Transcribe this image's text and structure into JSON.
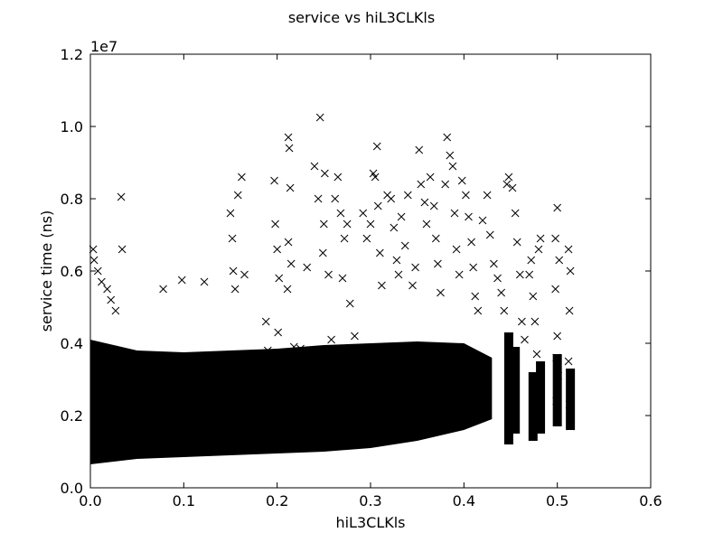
{
  "chart_data": {
    "type": "scatter",
    "title": "service vs hiL3CLKls",
    "xlabel": "hiL3CLKls",
    "ylabel": "service time (ns)",
    "y_scale_label": "1e7",
    "y_scale_factor": 10000000,
    "xlim": [
      0.0,
      0.6
    ],
    "ylim": [
      0.0,
      12000000
    ],
    "x_ticks": [
      0.0,
      0.1,
      0.2,
      0.3,
      0.4,
      0.5,
      0.6
    ],
    "x_tick_labels": [
      "0.0",
      "0.1",
      "0.2",
      "0.3",
      "0.4",
      "0.5",
      "0.6"
    ],
    "y_ticks": [
      0,
      2000000,
      4000000,
      6000000,
      8000000,
      10000000,
      12000000
    ],
    "y_tick_labels": [
      "0.0",
      "0.2",
      "0.4",
      "0.6",
      "0.8",
      "1.0",
      "1.2"
    ],
    "grid": false,
    "marker": "x",
    "marker_color": "#000000",
    "series": [
      {
        "points": [
          [
            0.003,
            6600000.0
          ],
          [
            0.004,
            6300000.0
          ],
          [
            0.008,
            6000000.0
          ],
          [
            0.012,
            5700000.0
          ],
          [
            0.018,
            5500000.0
          ],
          [
            0.022,
            5200000.0
          ],
          [
            0.027,
            4900000.0
          ],
          [
            0.033,
            8050000.0
          ],
          [
            0.034,
            6600000.0
          ],
          [
            0.078,
            5500000.0
          ],
          [
            0.098,
            5750000.0
          ],
          [
            0.122,
            5700000.0
          ],
          [
            0.15,
            7600000.0
          ],
          [
            0.152,
            6900000.0
          ],
          [
            0.153,
            6000000.0
          ],
          [
            0.155,
            5500000.0
          ],
          [
            0.162,
            8600000.0
          ],
          [
            0.158,
            8100000.0
          ],
          [
            0.165,
            5900000.0
          ],
          [
            0.188,
            4600000.0
          ],
          [
            0.19,
            3800000.0
          ],
          [
            0.197,
            8500000.0
          ],
          [
            0.2,
            6600000.0
          ],
          [
            0.198,
            7300000.0
          ],
          [
            0.202,
            5800000.0
          ],
          [
            0.201,
            4300000.0
          ],
          [
            0.212,
            9700000.0
          ],
          [
            0.213,
            9400000.0
          ],
          [
            0.214,
            8300000.0
          ],
          [
            0.212,
            6800000.0
          ],
          [
            0.215,
            6200000.0
          ],
          [
            0.211,
            5500000.0
          ],
          [
            0.218,
            3900000.0
          ],
          [
            0.225,
            3850000.0
          ],
          [
            0.232,
            6100000.0
          ],
          [
            0.24,
            8900000.0
          ],
          [
            0.244,
            8000000.0
          ],
          [
            0.246,
            10250000.0
          ],
          [
            0.251,
            8700000.0
          ],
          [
            0.25,
            7300000.0
          ],
          [
            0.249,
            6500000.0
          ],
          [
            0.255,
            5900000.0
          ],
          [
            0.258,
            4100000.0
          ],
          [
            0.262,
            8000000.0
          ],
          [
            0.265,
            8600000.0
          ],
          [
            0.268,
            7600000.0
          ],
          [
            0.272,
            6900000.0
          ],
          [
            0.275,
            7300000.0
          ],
          [
            0.27,
            5800000.0
          ],
          [
            0.278,
            5100000.0
          ],
          [
            0.283,
            4200000.0
          ],
          [
            0.292,
            7600000.0
          ],
          [
            0.296,
            6900000.0
          ],
          [
            0.3,
            7300000.0
          ],
          [
            0.303,
            8700000.0
          ],
          [
            0.305,
            8600000.0
          ],
          [
            0.307,
            9450000.0
          ],
          [
            0.308,
            7800000.0
          ],
          [
            0.31,
            6500000.0
          ],
          [
            0.312,
            5600000.0
          ],
          [
            0.318,
            8100000.0
          ],
          [
            0.322,
            8000000.0
          ],
          [
            0.325,
            7200000.0
          ],
          [
            0.328,
            6300000.0
          ],
          [
            0.33,
            5900000.0
          ],
          [
            0.333,
            7500000.0
          ],
          [
            0.337,
            6700000.0
          ],
          [
            0.34,
            8100000.0
          ],
          [
            0.345,
            5600000.0
          ],
          [
            0.348,
            6100000.0
          ],
          [
            0.352,
            9350000.0
          ],
          [
            0.354,
            8400000.0
          ],
          [
            0.358,
            7900000.0
          ],
          [
            0.36,
            7300000.0
          ],
          [
            0.364,
            8600000.0
          ],
          [
            0.368,
            7800000.0
          ],
          [
            0.37,
            6900000.0
          ],
          [
            0.372,
            6200000.0
          ],
          [
            0.375,
            5400000.0
          ],
          [
            0.38,
            8400000.0
          ],
          [
            0.382,
            9700000.0
          ],
          [
            0.385,
            9200000.0
          ],
          [
            0.388,
            8900000.0
          ],
          [
            0.39,
            7600000.0
          ],
          [
            0.392,
            6600000.0
          ],
          [
            0.395,
            5900000.0
          ],
          [
            0.398,
            8500000.0
          ],
          [
            0.402,
            8100000.0
          ],
          [
            0.405,
            7500000.0
          ],
          [
            0.408,
            6800000.0
          ],
          [
            0.41,
            6100000.0
          ],
          [
            0.412,
            5300000.0
          ],
          [
            0.415,
            4900000.0
          ],
          [
            0.42,
            7400000.0
          ],
          [
            0.425,
            8100000.0
          ],
          [
            0.428,
            7000000.0
          ],
          [
            0.432,
            6200000.0
          ],
          [
            0.436,
            5800000.0
          ],
          [
            0.44,
            5400000.0
          ],
          [
            0.443,
            4900000.0
          ],
          [
            0.446,
            8400000.0
          ],
          [
            0.448,
            8600000.0
          ],
          [
            0.452,
            8300000.0
          ],
          [
            0.455,
            7600000.0
          ],
          [
            0.457,
            6800000.0
          ],
          [
            0.46,
            5900000.0
          ],
          [
            0.462,
            4600000.0
          ],
          [
            0.465,
            4100000.0
          ],
          [
            0.47,
            5900000.0
          ],
          [
            0.472,
            6300000.0
          ],
          [
            0.474,
            5300000.0
          ],
          [
            0.476,
            4600000.0
          ],
          [
            0.478,
            3700000.0
          ],
          [
            0.48,
            6600000.0
          ],
          [
            0.482,
            6900000.0
          ],
          [
            0.498,
            6900000.0
          ],
          [
            0.5,
            7750000.0
          ],
          [
            0.502,
            6300000.0
          ],
          [
            0.498,
            5500000.0
          ],
          [
            0.5,
            4200000.0
          ],
          [
            0.499,
            3600000.0
          ],
          [
            0.501,
            3100000.0
          ],
          [
            0.499,
            2400000.0
          ],
          [
            0.512,
            6600000.0
          ],
          [
            0.514,
            6000000.0
          ],
          [
            0.513,
            4900000.0
          ],
          [
            0.512,
            3500000.0
          ],
          [
            0.514,
            2900000.0
          ],
          [
            0.513,
            2300000.0
          ],
          [
            0.514,
            1700000.0
          ]
        ],
        "dense_band": {
          "x": [
            0.0,
            0.05,
            0.1,
            0.15,
            0.2,
            0.25,
            0.3,
            0.35,
            0.4,
            0.43
          ],
          "y_low": [
            650000.0,
            800000.0,
            850000.0,
            900000.0,
            950000.0,
            1000000.0,
            1100000.0,
            1300000.0,
            1600000.0,
            1900000.0
          ],
          "y_high": [
            4100000.0,
            3800000.0,
            3750000.0,
            3800000.0,
            3850000.0,
            3950000.0,
            4000000.0,
            4050000.0,
            4000000.0,
            3600000.0
          ]
        },
        "side_clusters": [
          {
            "x": 0.448,
            "y_low": 1200000.0,
            "y_high": 4300000.0
          },
          {
            "x": 0.455,
            "y_low": 1500000.0,
            "y_high": 3900000.0
          },
          {
            "x": 0.474,
            "y_low": 1300000.0,
            "y_high": 3200000.0
          },
          {
            "x": 0.482,
            "y_low": 1500000.0,
            "y_high": 3500000.0
          },
          {
            "x": 0.5,
            "y_low": 1700000.0,
            "y_high": 3700000.0
          },
          {
            "x": 0.514,
            "y_low": 1600000.0,
            "y_high": 3300000.0
          }
        ]
      }
    ]
  }
}
